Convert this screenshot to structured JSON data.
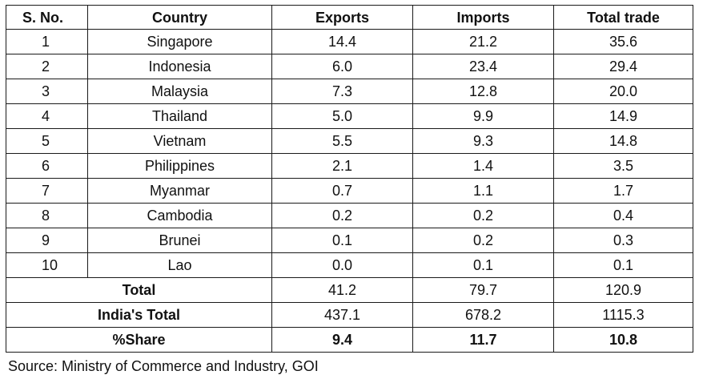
{
  "table": {
    "headers": {
      "sno": "S. No.",
      "country": "Country",
      "exports": "Exports",
      "imports": "Imports",
      "total": "Total trade"
    },
    "rows": [
      {
        "sno": "1",
        "country": "Singapore",
        "exports": "14.4",
        "imports": "21.2",
        "total": "35.6"
      },
      {
        "sno": "2",
        "country": "Indonesia",
        "exports": "6.0",
        "imports": "23.4",
        "total": "29.4"
      },
      {
        "sno": "3",
        "country": "Malaysia",
        "exports": "7.3",
        "imports": "12.8",
        "total": "20.0"
      },
      {
        "sno": "4",
        "country": "Thailand",
        "exports": "5.0",
        "imports": "9.9",
        "total": "14.9"
      },
      {
        "sno": "5",
        "country": "Vietnam",
        "exports": "5.5",
        "imports": "9.3",
        "total": "14.8"
      },
      {
        "sno": "6",
        "country": "Philippines",
        "exports": "2.1",
        "imports": "1.4",
        "total": "3.5"
      },
      {
        "sno": "7",
        "country": "Myanmar",
        "exports": "0.7",
        "imports": "1.1",
        "total": "1.7"
      },
      {
        "sno": "8",
        "country": "Cambodia",
        "exports": "0.2",
        "imports": "0.2",
        "total": "0.4"
      },
      {
        "sno": "9",
        "country": "Brunei",
        "exports": "0.1",
        "imports": "0.2",
        "total": "0.3"
      },
      {
        "sno": "10",
        "country": "Lao",
        "exports": "0.0",
        "imports": "0.1",
        "total": "0.1"
      }
    ],
    "summary": [
      {
        "label": "Total",
        "exports": "41.2",
        "imports": "79.7",
        "total": "120.9",
        "bold": false
      },
      {
        "label": "India's Total",
        "exports": "437.1",
        "imports": "678.2",
        "total": "1115.3",
        "bold": false
      },
      {
        "label": "%Share",
        "exports": "9.4",
        "imports": "11.7",
        "total": "10.8",
        "bold": true
      }
    ]
  },
  "source": "Source: Ministry of Commerce and Industry, GOI"
}
